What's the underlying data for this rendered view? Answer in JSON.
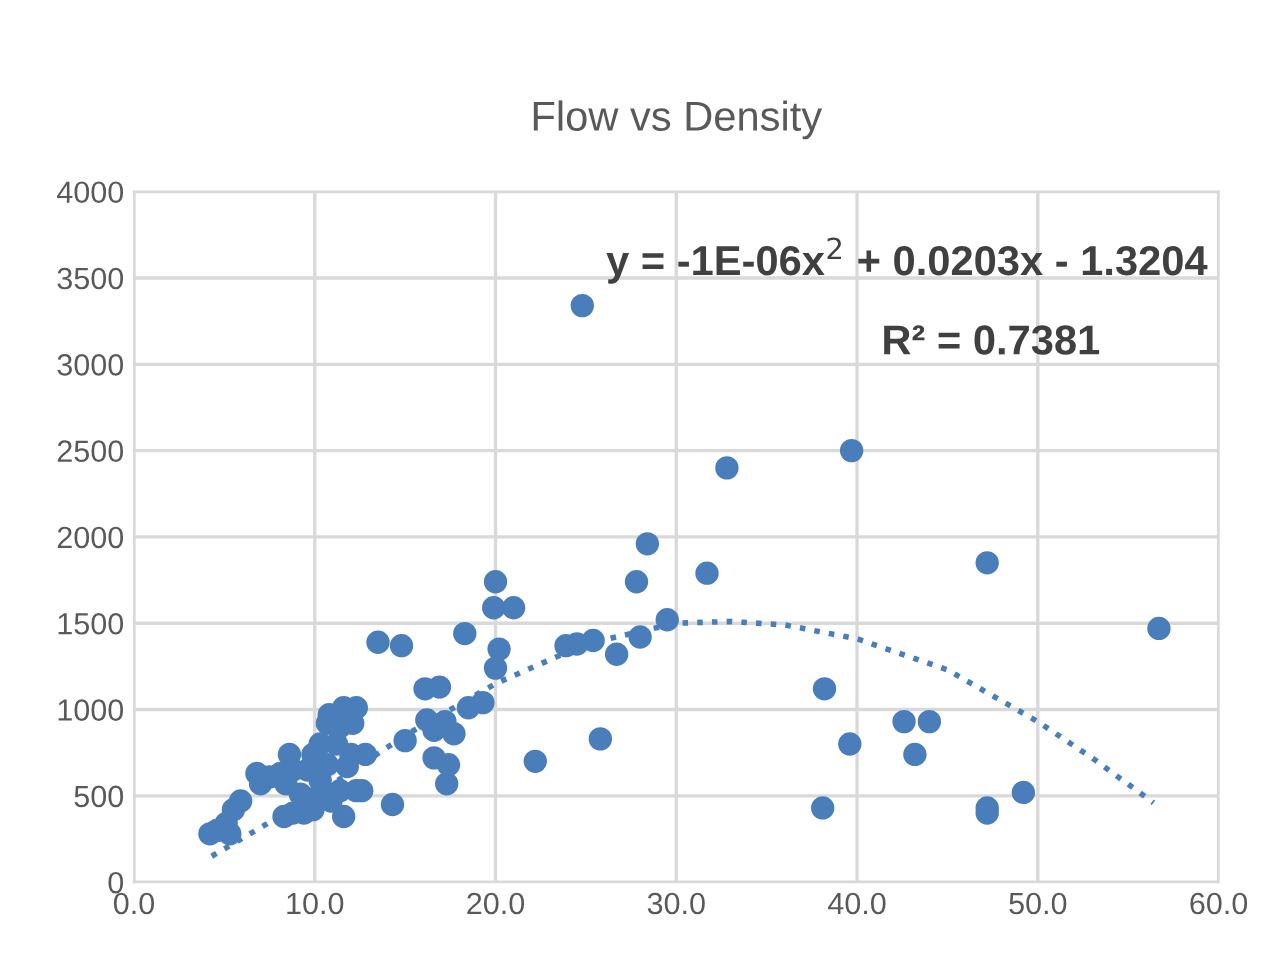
{
  "chart_data": {
    "type": "scatter",
    "title": "Flow vs Density",
    "xlim": [
      0,
      60
    ],
    "ylim": [
      0,
      4000
    ],
    "xticks": [
      {
        "value": 0,
        "label": "0.0"
      },
      {
        "value": 10,
        "label": "10.0"
      },
      {
        "value": 20,
        "label": "20.0"
      },
      {
        "value": 30,
        "label": "30.0"
      },
      {
        "value": 40,
        "label": "40.0"
      },
      {
        "value": 50,
        "label": "50.0"
      },
      {
        "value": 60,
        "label": "60.0"
      }
    ],
    "yticks": [
      0,
      500,
      1000,
      1500,
      2000,
      2500,
      3000,
      3500,
      4000
    ],
    "grid": true,
    "marker": "circle",
    "annotations": [
      "y = -1E-06x$^{2}$ + 0.0203x - 1.3204",
      "R² = 0.7381"
    ],
    "series": [
      {
        "color": "#4a7ebb",
        "x": [
          24.8,
          39.7,
          47.2,
          56.7,
          38.2,
          42.6,
          44.0,
          39.6,
          43.2,
          38.1,
          47.2,
          47.2,
          49.2,
          32.8,
          28.4,
          31.7,
          27.8,
          20.0,
          19.9,
          21.0,
          29.5,
          18.3,
          13.5,
          14.8,
          28.0,
          25.4,
          24.5,
          23.9,
          26.7,
          20.2,
          20.0,
          16.1,
          16.9,
          18.5,
          19.3,
          16.2,
          17.2,
          17.7,
          15.0,
          16.6,
          12.8,
          16.6,
          17.4,
          17.3,
          22.2,
          25.8,
          14.3,
          12.6,
          11.6,
          10.8,
          11.6,
          12.3,
          10.7,
          11.4,
          12.1,
          12.0,
          11.2,
          10.3,
          9.9,
          10.7,
          11.8,
          12.3,
          11.4,
          10.3,
          9.6,
          8.8,
          8.6,
          8.1,
          7.5,
          6.8,
          7.0,
          8.4,
          9.2,
          10.3,
          10.9,
          9.9,
          9.4,
          8.8,
          8.3,
          5.9,
          5.5,
          5.1,
          4.6,
          5.3,
          4.2
        ],
        "values": [
          3340,
          2500,
          1850,
          1470,
          1120,
          930,
          930,
          800,
          740,
          430,
          430,
          400,
          520,
          2400,
          1960,
          1790,
          1740,
          1740,
          1590,
          1590,
          1520,
          1440,
          1390,
          1370,
          1420,
          1400,
          1380,
          1370,
          1320,
          1350,
          1240,
          1120,
          1130,
          1010,
          1040,
          940,
          930,
          860,
          820,
          880,
          740,
          720,
          680,
          570,
          700,
          830,
          450,
          530,
          380,
          970,
          1010,
          1010,
          920,
          900,
          920,
          740,
          800,
          800,
          740,
          680,
          670,
          530,
          530,
          590,
          650,
          650,
          740,
          630,
          610,
          630,
          570,
          570,
          510,
          510,
          470,
          420,
          400,
          400,
          380,
          470,
          420,
          340,
          300,
          280,
          280
        ]
      },
      {
        "type": "line",
        "color": "#4a7ebb",
        "line_style": "dotted",
        "marker": "none",
        "x": [
          4.3,
          10,
          15,
          20,
          25,
          30,
          33,
          36,
          40,
          45,
          50,
          53,
          56.4
        ],
        "values": [
          150,
          500,
          850,
          1150,
          1380,
          1500,
          1510,
          1490,
          1410,
          1230,
          930,
          720,
          460
        ]
      }
    ]
  }
}
